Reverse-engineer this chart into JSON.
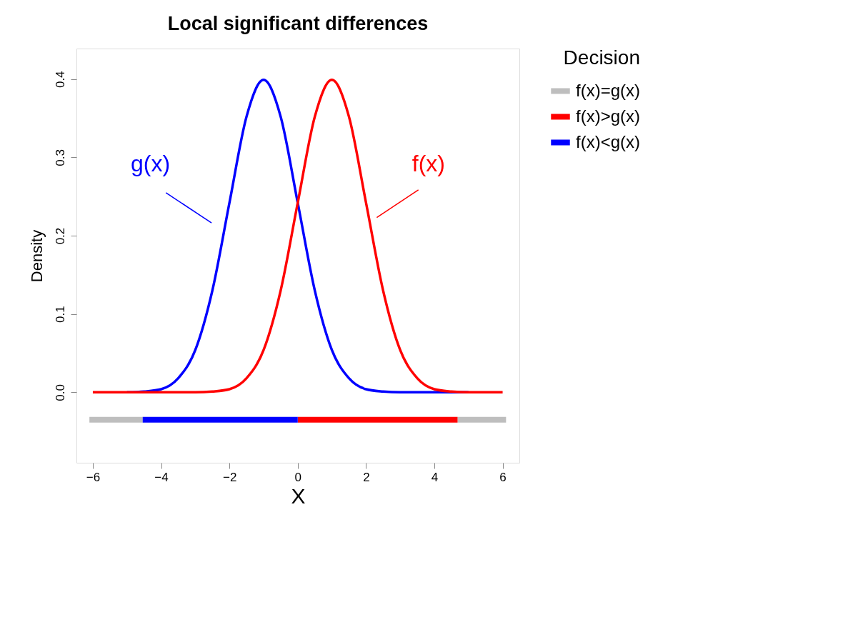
{
  "chart_data": {
    "type": "line",
    "title": "Local significant differences",
    "xlabel": "X",
    "ylabel": "Density",
    "legend_title": "Decision",
    "x": [
      -6,
      -5.5,
      -5,
      -4.5,
      -4,
      -3.5,
      -3,
      -2.5,
      -2,
      -1.5,
      -1,
      -0.5,
      0,
      0.5,
      1,
      1.5,
      2,
      2.5,
      3,
      3.5,
      4,
      4.5,
      5,
      5.5,
      6
    ],
    "series": [
      {
        "color": "#0000ff",
        "values": [
          null,
          null,
          0,
          0.001,
          0.004,
          0.018,
          0.054,
          0.13,
          0.242,
          0.352,
          0.399,
          0.352,
          0.242,
          0.13,
          0.054,
          0.018,
          0.004,
          0.001,
          0,
          0,
          0,
          0,
          0,
          null,
          null
        ]
      },
      {
        "color": "#ff0000",
        "values": [
          0,
          0,
          0,
          0,
          0,
          0,
          0,
          0.001,
          0.004,
          0.018,
          0.054,
          0.13,
          0.242,
          0.352,
          0.399,
          0.352,
          0.242,
          0.13,
          0.054,
          0.018,
          0.004,
          0.001,
          0,
          0,
          0
        ]
      },
      {
        "name": "f(x)=g(x)",
        "color": "#bebebe",
        "x": [
          -6.1,
          -4.54,
          0,
          4.68,
          6.1
        ],
        "values": [
          -0.035,
          -0.035,
          null,
          -0.035,
          -0.035
        ]
      },
      {
        "name": "f(x)>g(x)",
        "color": "#ff0000",
        "x": [
          0,
          4.68
        ],
        "values": [
          -0.035,
          -0.035
        ]
      },
      {
        "name": "f(x)<g(x)",
        "color": "#0000ff",
        "x": [
          -4.54,
          0
        ],
        "values": [
          -0.035,
          -0.035
        ]
      }
    ],
    "annotations": [
      "g(x)",
      "f(x)"
    ],
    "xlim": [
      -6.48,
      6.49
    ],
    "ylim": [
      -0.09,
      0.439
    ],
    "xticks": [
      {
        "value": -6,
        "label": "−6"
      },
      {
        "value": -4,
        "label": "−4"
      },
      {
        "value": -2,
        "label": "−2"
      },
      0,
      2,
      4,
      6
    ],
    "yticks": [
      {
        "value": 0,
        "label": "0.0"
      },
      0.1,
      0.2,
      0.3,
      0.4
    ],
    "grid": false,
    "legend": "top right",
    "line_style": "solid",
    "marker": "none"
  }
}
